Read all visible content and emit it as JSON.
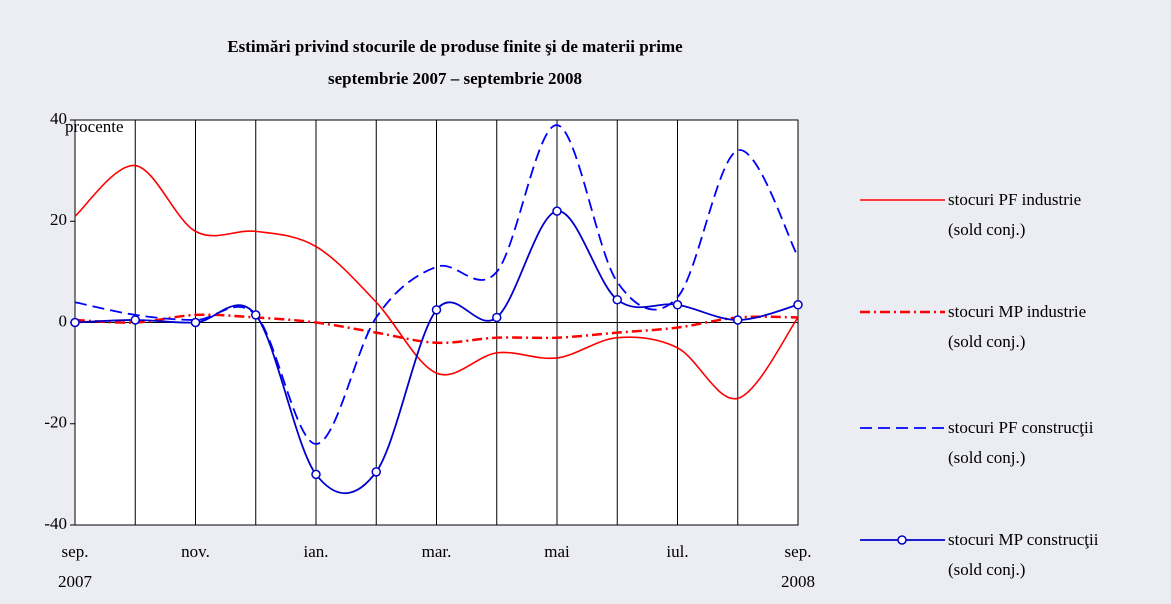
{
  "chart_data": {
    "type": "line",
    "title": "Estimări privind stocurile de produse finite şi de materii prime",
    "subtitle": "septembrie 2007 – septembrie 2008",
    "y_label": "procente",
    "categories": [
      "sep.",
      null,
      "nov.",
      null,
      "ian.",
      null,
      "mar.",
      null,
      "mai",
      null,
      "iul.",
      null,
      "sep."
    ],
    "category_years": [
      "2007",
      null,
      null,
      null,
      null,
      null,
      null,
      null,
      null,
      null,
      null,
      null,
      "2008"
    ],
    "ylim": [
      -40,
      40
    ],
    "yticks": [
      -40,
      -20,
      0,
      20,
      40
    ],
    "series": [
      {
        "name": "stocuri PF industrie\n(sold conj.)",
        "color": "#ff0000",
        "style": "solid",
        "values": [
          21,
          31,
          18,
          18,
          15,
          4,
          -10,
          -6,
          -7,
          -3,
          -5,
          -15,
          1
        ]
      },
      {
        "name": "stocuri MP industrie\n(sold conj.)",
        "color": "#ff0000",
        "style": "dashdot",
        "values": [
          0.5,
          0,
          1.5,
          1,
          0,
          -2,
          -4,
          -3,
          -3,
          -2,
          -1,
          1,
          1
        ]
      },
      {
        "name": "stocuri PF construcţii\n(sold conj.)",
        "color": "#0000ff",
        "style": "dashed",
        "values": [
          4,
          1.5,
          0.5,
          1.5,
          -24,
          1,
          11,
          10,
          39,
          8,
          5,
          34,
          13
        ]
      },
      {
        "name": "stocuri MP construcţii\n(sold conj.)",
        "color": "#0000cc",
        "style": "markers",
        "values": [
          0,
          0.5,
          0,
          1.5,
          -30,
          -29.5,
          2.5,
          1,
          22,
          4.5,
          3.5,
          0.5,
          3.5
        ]
      }
    ]
  }
}
